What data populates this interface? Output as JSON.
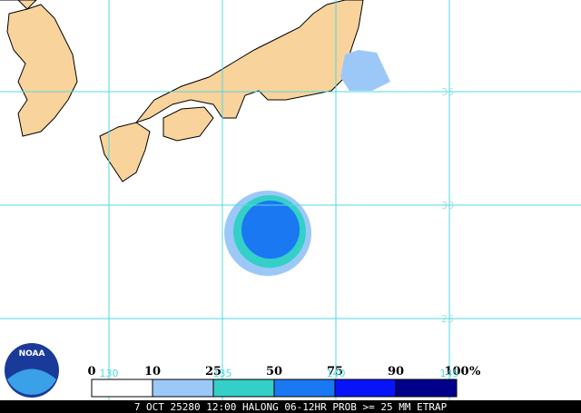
{
  "map": {
    "lat_labels": [
      35,
      30,
      25
    ],
    "lon_labels": [
      130,
      135,
      140,
      145
    ]
  },
  "legend": {
    "labels": [
      0,
      10,
      25,
      50,
      75,
      90,
      100
    ],
    "unit": "%",
    "colors": [
      "#ffffff",
      "#9cc8f8",
      "#34d0c8",
      "#1a78f2",
      "#0814f8",
      "#00008c"
    ]
  },
  "logo": {
    "text": "NOAA"
  },
  "caption": "7 OCT 25280 12:00 HALONG 06-12HR PROB >= 25 MM ETRAP"
}
